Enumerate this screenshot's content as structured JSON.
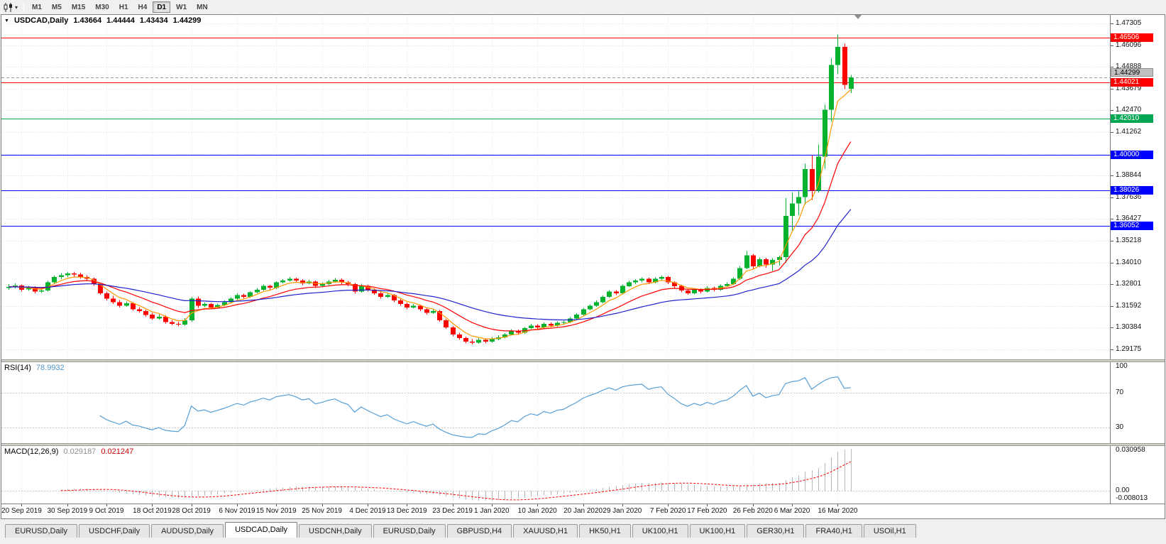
{
  "toolbar": {
    "chart_type_icon": "candlestick-chart-icon",
    "dropdown_icon": "chevron-down-icon",
    "timeframes": [
      "M1",
      "M5",
      "M15",
      "M30",
      "H1",
      "H4",
      "D1",
      "W1",
      "MN"
    ],
    "active_timeframe": "D1"
  },
  "chart_header": {
    "collapse_icon": "down-triangle",
    "symbol": "USDCAD,Daily",
    "open": "1.43664",
    "high": "1.44444",
    "low": "1.43434",
    "close": "1.44299"
  },
  "chart_data": {
    "type": "candlestick",
    "symbol": "USDCAD",
    "period": "Daily",
    "colors": {
      "up": "#00B22D",
      "down": "#FF0000",
      "grid": "#DCDCDC",
      "background": "#FFFFFF"
    },
    "y_axis": {
      "top_price": 1.4778,
      "bottom_price": 1.2862,
      "ticks": [
        "1.47305",
        "1.46096",
        "1.44888",
        "1.43679",
        "1.42470",
        "1.41262",
        "1.40053",
        "1.38844",
        "1.37636",
        "1.36427",
        "1.35218",
        "1.34010",
        "1.32801",
        "1.31592",
        "1.30384",
        "1.29175"
      ]
    },
    "x_axis": {
      "ticks": [
        "20 Sep 2019",
        "30 Sep 2019",
        "9 Oct 2019",
        "18 Oct 2019",
        "28 Oct 2019",
        "6 Nov 2019",
        "15 Nov 2019",
        "25 Nov 2019",
        "4 Dec 2019",
        "13 Dec 2019",
        "23 Dec 2019",
        "1 Jan 2020",
        "10 Jan 2020",
        "20 Jan 2020",
        "29 Jan 2020",
        "7 Feb 2020",
        "17 Feb 2020",
        "26 Feb 2020",
        "6 Mar 2020",
        "16 Mar 2020"
      ]
    },
    "horizontal_lines": [
      {
        "price": 1.46506,
        "label": "1.46506",
        "color": "#FF0000"
      },
      {
        "price": 1.44021,
        "label": "1.44021",
        "color": "#FF0000"
      },
      {
        "price": 1.4201,
        "label": "1.42010",
        "color": "#00A651"
      },
      {
        "price": 1.4,
        "label": "1.40000",
        "color": "#0000FF"
      },
      {
        "price": 1.38026,
        "label": "1.38026",
        "color": "#0000FF"
      },
      {
        "price": 1.36052,
        "label": "1.36052",
        "color": "#0000FF"
      }
    ],
    "bid": {
      "price": 1.44299,
      "label": "1.44299",
      "line_color": "#999999"
    },
    "moving_averages": [
      {
        "type": "EMA",
        "period": 5,
        "color": "#FF9900"
      },
      {
        "type": "EMA",
        "period": 13,
        "color": "#FF0000"
      },
      {
        "type": "EMA",
        "period": 34,
        "color": "#2020CC"
      }
    ],
    "rsi": {
      "name": "RSI(14)",
      "value": "78.9932",
      "period": 14,
      "color": "#559FD6",
      "levels": [
        70,
        30
      ],
      "axis_labels": [
        "100",
        "70",
        "30"
      ],
      "axis_values": [
        100,
        70,
        30
      ]
    },
    "macd": {
      "name": "MACD(12,26,9)",
      "value_main": "0.029187",
      "value_signal": "0.021247",
      "fast": 12,
      "slow": 26,
      "signal": 9,
      "histogram_color": "#B8B8B8",
      "signal_color": "#FF0000",
      "axis_labels": [
        "0.030958",
        "0.00",
        "-0.008013"
      ]
    },
    "candles": [
      [
        1.326,
        1.3281,
        1.3249,
        1.3265
      ],
      [
        1.3265,
        1.3284,
        1.3258,
        1.3272
      ],
      [
        1.3272,
        1.3279,
        1.324,
        1.325
      ],
      [
        1.325,
        1.327,
        1.3244,
        1.3262
      ],
      [
        1.3262,
        1.3268,
        1.3229,
        1.324
      ],
      [
        1.324,
        1.3256,
        1.3232,
        1.3245
      ],
      [
        1.3245,
        1.3298,
        1.324,
        1.329
      ],
      [
        1.329,
        1.3328,
        1.3282,
        1.332
      ],
      [
        1.332,
        1.3342,
        1.3309,
        1.333
      ],
      [
        1.333,
        1.3348,
        1.3321,
        1.334
      ],
      [
        1.334,
        1.3347,
        1.3322,
        1.3335
      ],
      [
        1.3335,
        1.3344,
        1.331,
        1.332
      ],
      [
        1.332,
        1.3331,
        1.33,
        1.331
      ],
      [
        1.331,
        1.3316,
        1.327,
        1.328
      ],
      [
        1.328,
        1.3288,
        1.3222,
        1.323
      ],
      [
        1.323,
        1.3239,
        1.319,
        1.32
      ],
      [
        1.32,
        1.3215,
        1.317,
        1.318
      ],
      [
        1.318,
        1.3192,
        1.315,
        1.316
      ],
      [
        1.316,
        1.3183,
        1.3154,
        1.3175
      ],
      [
        1.3175,
        1.3181,
        1.3132,
        1.314
      ],
      [
        1.314,
        1.3152,
        1.3121,
        1.313
      ],
      [
        1.313,
        1.3139,
        1.31,
        1.311
      ],
      [
        1.311,
        1.3121,
        1.3081,
        1.309
      ],
      [
        1.309,
        1.3112,
        1.3084,
        1.31
      ],
      [
        1.31,
        1.3106,
        1.3062,
        1.307
      ],
      [
        1.307,
        1.3081,
        1.3051,
        1.306
      ],
      [
        1.306,
        1.3072,
        1.3046,
        1.3055
      ],
      [
        1.3055,
        1.3092,
        1.305,
        1.308
      ],
      [
        1.308,
        1.3209,
        1.3072,
        1.32
      ],
      [
        1.32,
        1.3212,
        1.3148,
        1.316
      ],
      [
        1.316,
        1.3178,
        1.3152,
        1.317
      ],
      [
        1.317,
        1.3177,
        1.3141,
        1.315
      ],
      [
        1.315,
        1.3172,
        1.3144,
        1.3165
      ],
      [
        1.3165,
        1.3189,
        1.3159,
        1.318
      ],
      [
        1.318,
        1.3208,
        1.3174,
        1.32
      ],
      [
        1.32,
        1.3229,
        1.3194,
        1.322
      ],
      [
        1.322,
        1.3227,
        1.3199,
        1.321
      ],
      [
        1.321,
        1.3242,
        1.3204,
        1.3235
      ],
      [
        1.3235,
        1.3259,
        1.3229,
        1.325
      ],
      [
        1.325,
        1.3278,
        1.3244,
        1.327
      ],
      [
        1.327,
        1.3277,
        1.3249,
        1.326
      ],
      [
        1.326,
        1.3297,
        1.3254,
        1.329
      ],
      [
        1.329,
        1.3309,
        1.3284,
        1.33
      ],
      [
        1.33,
        1.3321,
        1.3294,
        1.331
      ],
      [
        1.331,
        1.3317,
        1.3289,
        1.33
      ],
      [
        1.33,
        1.3308,
        1.3274,
        1.3285
      ],
      [
        1.3285,
        1.3304,
        1.3279,
        1.3295
      ],
      [
        1.3295,
        1.3301,
        1.3259,
        1.327
      ],
      [
        1.327,
        1.3291,
        1.3262,
        1.328
      ],
      [
        1.328,
        1.3304,
        1.3274,
        1.3295
      ],
      [
        1.3295,
        1.3314,
        1.3289,
        1.3305
      ],
      [
        1.3305,
        1.3312,
        1.3279,
        1.329
      ],
      [
        1.329,
        1.3299,
        1.3268,
        1.328
      ],
      [
        1.328,
        1.3287,
        1.3228,
        1.324
      ],
      [
        1.324,
        1.3282,
        1.3234,
        1.327
      ],
      [
        1.327,
        1.3277,
        1.3239,
        1.325
      ],
      [
        1.325,
        1.3258,
        1.3221,
        1.323
      ],
      [
        1.323,
        1.3238,
        1.3199,
        1.321
      ],
      [
        1.321,
        1.3231,
        1.3204,
        1.322
      ],
      [
        1.322,
        1.3226,
        1.3181,
        1.319
      ],
      [
        1.319,
        1.3197,
        1.3161,
        1.317
      ],
      [
        1.317,
        1.3178,
        1.3141,
        1.315
      ],
      [
        1.315,
        1.3171,
        1.3144,
        1.316
      ],
      [
        1.316,
        1.3166,
        1.3131,
        1.314
      ],
      [
        1.314,
        1.3147,
        1.3111,
        1.312
      ],
      [
        1.312,
        1.3141,
        1.3114,
        1.313
      ],
      [
        1.313,
        1.3136,
        1.3071,
        1.308
      ],
      [
        1.308,
        1.3088,
        1.3031,
        1.304
      ],
      [
        1.304,
        1.3048,
        1.2991,
        1.3
      ],
      [
        1.3,
        1.3011,
        1.2971,
        1.298
      ],
      [
        1.298,
        1.2989,
        1.2951,
        1.296
      ],
      [
        1.296,
        1.2974,
        1.2945,
        1.2955
      ],
      [
        1.2955,
        1.2981,
        1.2949,
        1.297
      ],
      [
        1.297,
        1.2978,
        1.2951,
        1.296
      ],
      [
        1.296,
        1.2986,
        1.2954,
        1.2975
      ],
      [
        1.2975,
        1.2996,
        1.2969,
        1.2985
      ],
      [
        1.2985,
        1.3009,
        1.2979,
        1.3
      ],
      [
        1.3,
        1.3029,
        1.2994,
        1.302
      ],
      [
        1.302,
        1.3027,
        1.2999,
        1.301
      ],
      [
        1.301,
        1.3042,
        1.3004,
        1.3035
      ],
      [
        1.3035,
        1.3059,
        1.3029,
        1.305
      ],
      [
        1.305,
        1.3057,
        1.3029,
        1.304
      ],
      [
        1.304,
        1.3068,
        1.3034,
        1.306
      ],
      [
        1.306,
        1.3067,
        1.3039,
        1.305
      ],
      [
        1.305,
        1.3073,
        1.3044,
        1.3065
      ],
      [
        1.3065,
        1.3078,
        1.3054,
        1.307
      ],
      [
        1.307,
        1.3098,
        1.3064,
        1.309
      ],
      [
        1.309,
        1.3118,
        1.3084,
        1.311
      ],
      [
        1.311,
        1.3148,
        1.3104,
        1.314
      ],
      [
        1.314,
        1.3168,
        1.3134,
        1.316
      ],
      [
        1.316,
        1.3189,
        1.3154,
        1.318
      ],
      [
        1.318,
        1.3218,
        1.3174,
        1.321
      ],
      [
        1.321,
        1.3248,
        1.3204,
        1.324
      ],
      [
        1.324,
        1.3247,
        1.3219,
        1.323
      ],
      [
        1.323,
        1.3278,
        1.3224,
        1.327
      ],
      [
        1.327,
        1.3299,
        1.3264,
        1.329
      ],
      [
        1.329,
        1.3309,
        1.3281,
        1.33
      ],
      [
        1.33,
        1.3319,
        1.3291,
        1.331
      ],
      [
        1.331,
        1.3317,
        1.3281,
        1.329
      ],
      [
        1.329,
        1.3319,
        1.3284,
        1.331
      ],
      [
        1.331,
        1.3329,
        1.3301,
        1.332
      ],
      [
        1.332,
        1.3327,
        1.3281,
        1.329
      ],
      [
        1.329,
        1.3297,
        1.3259,
        1.327
      ],
      [
        1.327,
        1.3276,
        1.3236,
        1.3245
      ],
      [
        1.3245,
        1.3252,
        1.3221,
        1.323
      ],
      [
        1.323,
        1.3259,
        1.3224,
        1.325
      ],
      [
        1.325,
        1.3257,
        1.3229,
        1.324
      ],
      [
        1.324,
        1.3269,
        1.3234,
        1.326
      ],
      [
        1.326,
        1.3267,
        1.3239,
        1.325
      ],
      [
        1.325,
        1.3279,
        1.3244,
        1.327
      ],
      [
        1.327,
        1.3291,
        1.3264,
        1.328
      ],
      [
        1.328,
        1.3319,
        1.3274,
        1.331
      ],
      [
        1.331,
        1.3381,
        1.3304,
        1.337
      ],
      [
        1.337,
        1.3465,
        1.3364,
        1.344
      ],
      [
        1.344,
        1.3448,
        1.3362,
        1.338
      ],
      [
        1.338,
        1.3429,
        1.3374,
        1.342
      ],
      [
        1.342,
        1.3427,
        1.3371,
        1.339
      ],
      [
        1.339,
        1.3424,
        1.3354,
        1.3415
      ],
      [
        1.3415,
        1.3439,
        1.3384,
        1.343
      ],
      [
        1.343,
        1.3758,
        1.34,
        1.366
      ],
      [
        1.366,
        1.379,
        1.358,
        1.373
      ],
      [
        1.373,
        1.38,
        1.3664,
        1.3765
      ],
      [
        1.3765,
        1.395,
        1.3724,
        1.392
      ],
      [
        1.392,
        1.3995,
        1.3748,
        1.38
      ],
      [
        1.38,
        1.4058,
        1.379,
        1.399
      ],
      [
        1.399,
        1.4279,
        1.3922,
        1.425
      ],
      [
        1.425,
        1.4538,
        1.4184,
        1.45
      ],
      [
        1.45,
        1.4669,
        1.4448,
        1.46
      ],
      [
        1.46,
        1.4618,
        1.4365,
        1.439
      ],
      [
        1.43664,
        1.44444,
        1.43434,
        1.44299
      ]
    ]
  },
  "tab_bar": {
    "tabs": [
      "EURUSD,Daily",
      "USDCHF,Daily",
      "AUDUSD,Daily",
      "USDCAD,Daily",
      "USDCNH,Daily",
      "EURUSD,Daily",
      "GBPUSD,H4",
      "XAUUSD,H1",
      "HK50,H1",
      "UK100,H1",
      "UK100,H1",
      "GER30,H1",
      "FRA40,H1",
      "USOil,H1"
    ],
    "active_index": 3
  }
}
